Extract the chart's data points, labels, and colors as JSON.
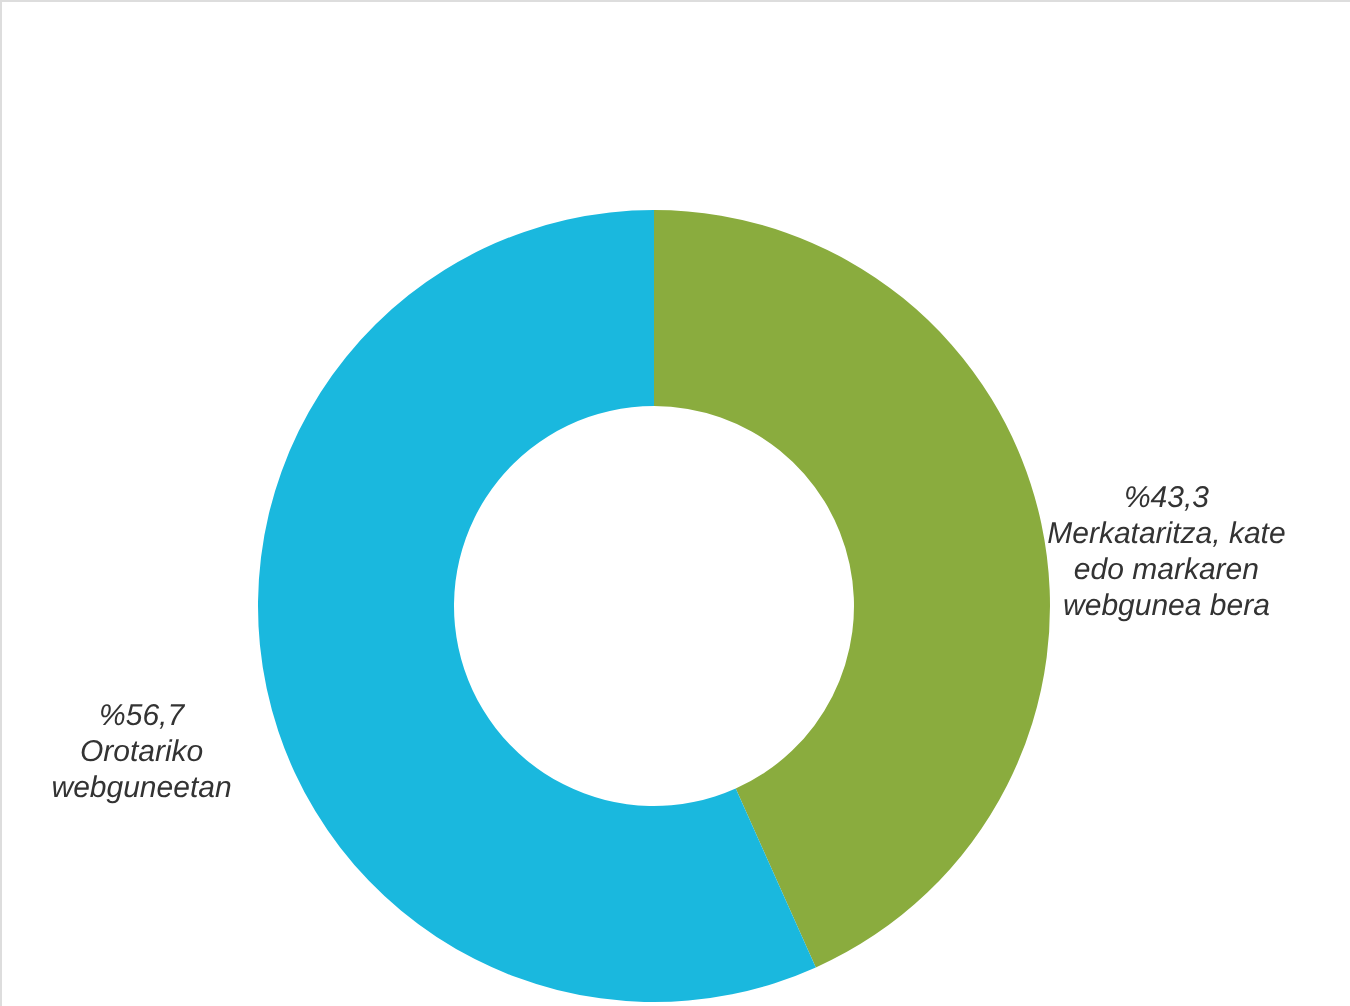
{
  "chart_data": {
    "type": "donut",
    "categories": [
      "Merkataritza, kate edo markaren webgunea bera",
      "Orotariko webguneetan"
    ],
    "values": [
      43.3,
      56.7
    ],
    "value_labels": [
      "%43,3",
      "%56,7"
    ],
    "colors": [
      "#8aac3e",
      "#1ab8de"
    ]
  }
}
